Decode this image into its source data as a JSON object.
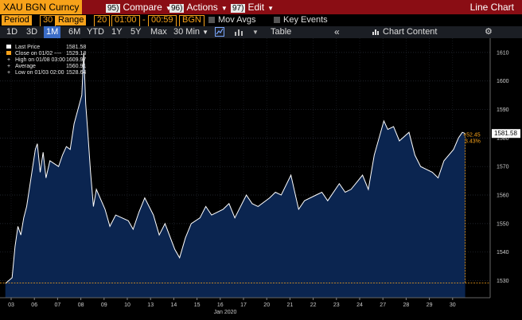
{
  "header": {
    "ticker": "XAU BGN Curncy",
    "menus": [
      {
        "num": "95)",
        "label": "Compare"
      },
      {
        "num": "96)",
        "label": "Actions"
      },
      {
        "num": "97)",
        "label": "Edit"
      }
    ],
    "title": "Line Chart"
  },
  "settings": {
    "period_label": "Period",
    "period_value": "30",
    "range_label": "Range",
    "range_value": "20",
    "time_from": "01:00",
    "time_to": "00:59",
    "source": "BGN",
    "mov_avgs": "Mov Avgs",
    "key_events": "Key Events"
  },
  "toolbar": {
    "periods": [
      "1D",
      "3D",
      "1M",
      "6M",
      "YTD",
      "1Y",
      "5Y",
      "Max"
    ],
    "active_period": "1M",
    "interval": "30 Min",
    "table": "Table",
    "chart_content": "Chart Content",
    "icons": [
      "line-chart-icon",
      "bar-chart-icon",
      "chevron-down-icon",
      "double-chevron-left-icon",
      "chart-content-icon",
      "gear-icon"
    ]
  },
  "legend": {
    "last_price": "Last Price",
    "last_price_val": "1581.58",
    "close": "Close on 01/02 ----",
    "close_val": "1529.13",
    "high": "High on 01/08 03:00",
    "high_val": "1609.97",
    "average": "Average",
    "average_val": "1560.91",
    "low": "Low on 01/03 02:00",
    "low_val": "1528.64"
  },
  "annotations": {
    "last_tag": "1581.58",
    "change": "+52.45",
    "change_pct": "3.43%"
  },
  "colors": {
    "accent_orange": "#f7a21a",
    "header_red": "#8a0d14",
    "area_fill": "#0b2550",
    "line": "#ffffff"
  },
  "chart_data": {
    "type": "area",
    "xlabel": "Jan 2020",
    "x_ticks": [
      "03",
      "06",
      "07",
      "08",
      "09",
      "10",
      "13",
      "14",
      "15",
      "16",
      "17",
      "20",
      "21",
      "22",
      "23",
      "24",
      "27",
      "28",
      "29",
      "30"
    ],
    "y_ticks": [
      1530,
      1540,
      1550,
      1560,
      1570,
      1580,
      1590,
      1600,
      1610
    ],
    "ylim": [
      1524,
      1615
    ],
    "y_axis_side": "right",
    "reference_line": 1529.13,
    "series": [
      {
        "name": "Last Price",
        "x": [
          "01-02 18:00",
          "01-03 01:00",
          "01-03 04:00",
          "01-03 07:00",
          "01-03 10:00",
          "01-03 13:00",
          "01-03 16:00",
          "01-06 01:00",
          "01-06 03:00",
          "01-06 06:00",
          "01-06 09:00",
          "01-06 12:00",
          "01-06 16:00",
          "01-07 01:00",
          "01-07 05:00",
          "01-07 09:00",
          "01-07 13:00",
          "01-07 17:00",
          "01-08 01:00",
          "01-08 03:00",
          "01-08 05:00",
          "01-08 07:00",
          "01-08 10:00",
          "01-08 13:00",
          "01-08 16:00",
          "01-09 01:00",
          "01-09 06:00",
          "01-09 12:00",
          "01-10 01:00",
          "01-10 06:00",
          "01-10 12:00",
          "01-10 18:00",
          "01-13 03:00",
          "01-13 09:00",
          "01-13 15:00",
          "01-14 01:00",
          "01-14 06:00",
          "01-14 12:00",
          "01-14 18:00",
          "01-15 03:00",
          "01-15 09:00",
          "01-15 15:00",
          "01-16 03:00",
          "01-16 09:00",
          "01-16 15:00",
          "01-17 03:00",
          "01-17 09:00",
          "01-17 15:00",
          "01-20 03:00",
          "01-20 09:00",
          "01-20 15:00",
          "01-21 01:00",
          "01-21 03:00",
          "01-21 09:00",
          "01-21 15:00",
          "01-22 03:00",
          "01-22 09:00",
          "01-22 15:00",
          "01-23 03:00",
          "01-23 09:00",
          "01-23 15:00",
          "01-24 03:00",
          "01-24 09:00",
          "01-24 15:00",
          "01-27 01:00",
          "01-27 05:00",
          "01-27 11:00",
          "01-27 17:00",
          "01-28 03:00",
          "01-28 09:00",
          "01-28 15:00",
          "01-29 03:00",
          "01-29 09:00",
          "01-29 15:00",
          "01-30 01:00",
          "01-30 06:00",
          "01-30 10:00",
          "01-30 13:00"
        ],
        "y": [
          1529,
          1531,
          1542,
          1549,
          1546,
          1552,
          1556,
          1576,
          1578,
          1568,
          1575,
          1566,
          1572,
          1570,
          1574,
          1577,
          1576,
          1585,
          1595,
          1609.97,
          1592,
          1583,
          1568,
          1556,
          1562,
          1555,
          1549,
          1553,
          1551,
          1548,
          1554,
          1559,
          1553,
          1546,
          1550,
          1541,
          1538,
          1545,
          1550,
          1552,
          1556,
          1553,
          1555,
          1557,
          1552,
          1560,
          1557,
          1556,
          1559,
          1561,
          1560,
          1567,
          1564,
          1555,
          1558,
          1560,
          1561,
          1558,
          1564,
          1561,
          1562,
          1567,
          1562,
          1574,
          1586,
          1583,
          1584,
          1579,
          1582,
          1574,
          1570,
          1568,
          1566,
          1572,
          1576,
          1580,
          1582,
          1581.58
        ]
      }
    ]
  }
}
